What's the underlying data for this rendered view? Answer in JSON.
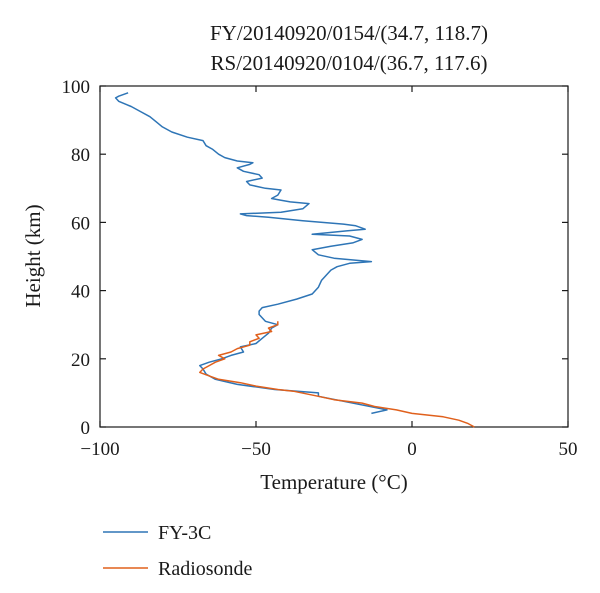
{
  "chart_data": {
    "type": "line",
    "title": "FY/20140920/0154/(34.7, 118.7)",
    "subtitle": "RS/20140920/0104/(36.7, 117.6)",
    "xlabel": "Temperature (°C)",
    "ylabel": "Height (km)",
    "xlim": [
      -100,
      50
    ],
    "ylim": [
      0,
      100
    ],
    "xticks": [
      "−100",
      "−50",
      "0",
      "50"
    ],
    "yticks": [
      "0",
      "20",
      "40",
      "60",
      "80",
      "100"
    ],
    "grid": false,
    "legend": {
      "placement": "below",
      "entries": [
        "FY-3C",
        "Radiosonde"
      ]
    },
    "series": [
      {
        "name": "FY-3C",
        "color": "#2e75b6",
        "points": [
          [
            -13,
            4
          ],
          [
            -8,
            5
          ],
          [
            -30,
            9
          ],
          [
            -30,
            10
          ],
          [
            -44,
            11
          ],
          [
            -56,
            12.5
          ],
          [
            -63,
            14
          ],
          [
            -66,
            15.5
          ],
          [
            -67,
            17
          ],
          [
            -68,
            18
          ],
          [
            -65,
            19
          ],
          [
            -61,
            20
          ],
          [
            -58,
            21
          ],
          [
            -54,
            22
          ],
          [
            -55,
            23.5
          ],
          [
            -50,
            24.5
          ],
          [
            -48,
            26
          ],
          [
            -46,
            27.5
          ],
          [
            -45,
            29
          ],
          [
            -43,
            30
          ],
          [
            -47,
            31
          ],
          [
            -49,
            33
          ],
          [
            -49,
            34
          ],
          [
            -48,
            35
          ],
          [
            -43,
            36
          ],
          [
            -37,
            37.5
          ],
          [
            -32,
            39
          ],
          [
            -30,
            41
          ],
          [
            -29,
            43
          ],
          [
            -27,
            45
          ],
          [
            -26,
            46
          ],
          [
            -24,
            47
          ],
          [
            -20,
            48
          ],
          [
            -13,
            48.5
          ],
          [
            -25,
            49.5
          ],
          [
            -30,
            50.5
          ],
          [
            -32,
            52
          ],
          [
            -26,
            53
          ],
          [
            -19,
            54
          ],
          [
            -16,
            55
          ],
          [
            -20,
            56
          ],
          [
            -32,
            56.5
          ],
          [
            -21,
            57.5
          ],
          [
            -15,
            58
          ],
          [
            -18,
            59
          ],
          [
            -22,
            59.5
          ],
          [
            -35,
            60.5
          ],
          [
            -46,
            61.5
          ],
          [
            -53,
            62
          ],
          [
            -55,
            62.5
          ],
          [
            -42,
            63
          ],
          [
            -35,
            64
          ],
          [
            -33,
            65.5
          ],
          [
            -39,
            66
          ],
          [
            -42,
            66.5
          ],
          [
            -45,
            67
          ],
          [
            -43,
            68
          ],
          [
            -42,
            69.5
          ],
          [
            -47,
            70
          ],
          [
            -52,
            71
          ],
          [
            -53,
            72
          ],
          [
            -48,
            73
          ],
          [
            -49,
            74
          ],
          [
            -54,
            75
          ],
          [
            -56,
            76
          ],
          [
            -52,
            77
          ],
          [
            -51,
            77.5
          ],
          [
            -56,
            78
          ],
          [
            -60,
            79
          ],
          [
            -62,
            80
          ],
          [
            -64,
            81.5
          ],
          [
            -66,
            82.5
          ],
          [
            -67,
            84
          ],
          [
            -72,
            85
          ],
          [
            -77,
            86.5
          ],
          [
            -80,
            88
          ],
          [
            -82,
            89.5
          ],
          [
            -84,
            91
          ],
          [
            -87,
            92.5
          ],
          [
            -90,
            94
          ],
          [
            -94,
            95.5
          ],
          [
            -95,
            96.5
          ],
          [
            -94,
            97
          ],
          [
            -91,
            98
          ]
        ]
      },
      {
        "name": "Radiosonde",
        "color": "#e0601c",
        "points": [
          [
            20,
            0
          ],
          [
            18,
            1
          ],
          [
            15,
            2
          ],
          [
            10,
            3
          ],
          [
            0,
            4
          ],
          [
            -5,
            5
          ],
          [
            -12,
            6
          ],
          [
            -16,
            7
          ],
          [
            -25,
            8
          ],
          [
            -30,
            9
          ],
          [
            -38,
            10.5
          ],
          [
            -43,
            11
          ],
          [
            -50,
            12
          ],
          [
            -55,
            13
          ],
          [
            -62,
            14
          ],
          [
            -65,
            15
          ],
          [
            -68,
            16
          ],
          [
            -67,
            17
          ],
          [
            -65,
            18
          ],
          [
            -63,
            19
          ],
          [
            -60,
            20
          ],
          [
            -62,
            21
          ],
          [
            -58,
            22
          ],
          [
            -56,
            23
          ],
          [
            -52,
            24
          ],
          [
            -52,
            25
          ],
          [
            -49,
            26
          ],
          [
            -50,
            27
          ],
          [
            -45,
            28
          ],
          [
            -46,
            29
          ],
          [
            -43,
            30
          ],
          [
            -43,
            31
          ]
        ]
      }
    ]
  }
}
